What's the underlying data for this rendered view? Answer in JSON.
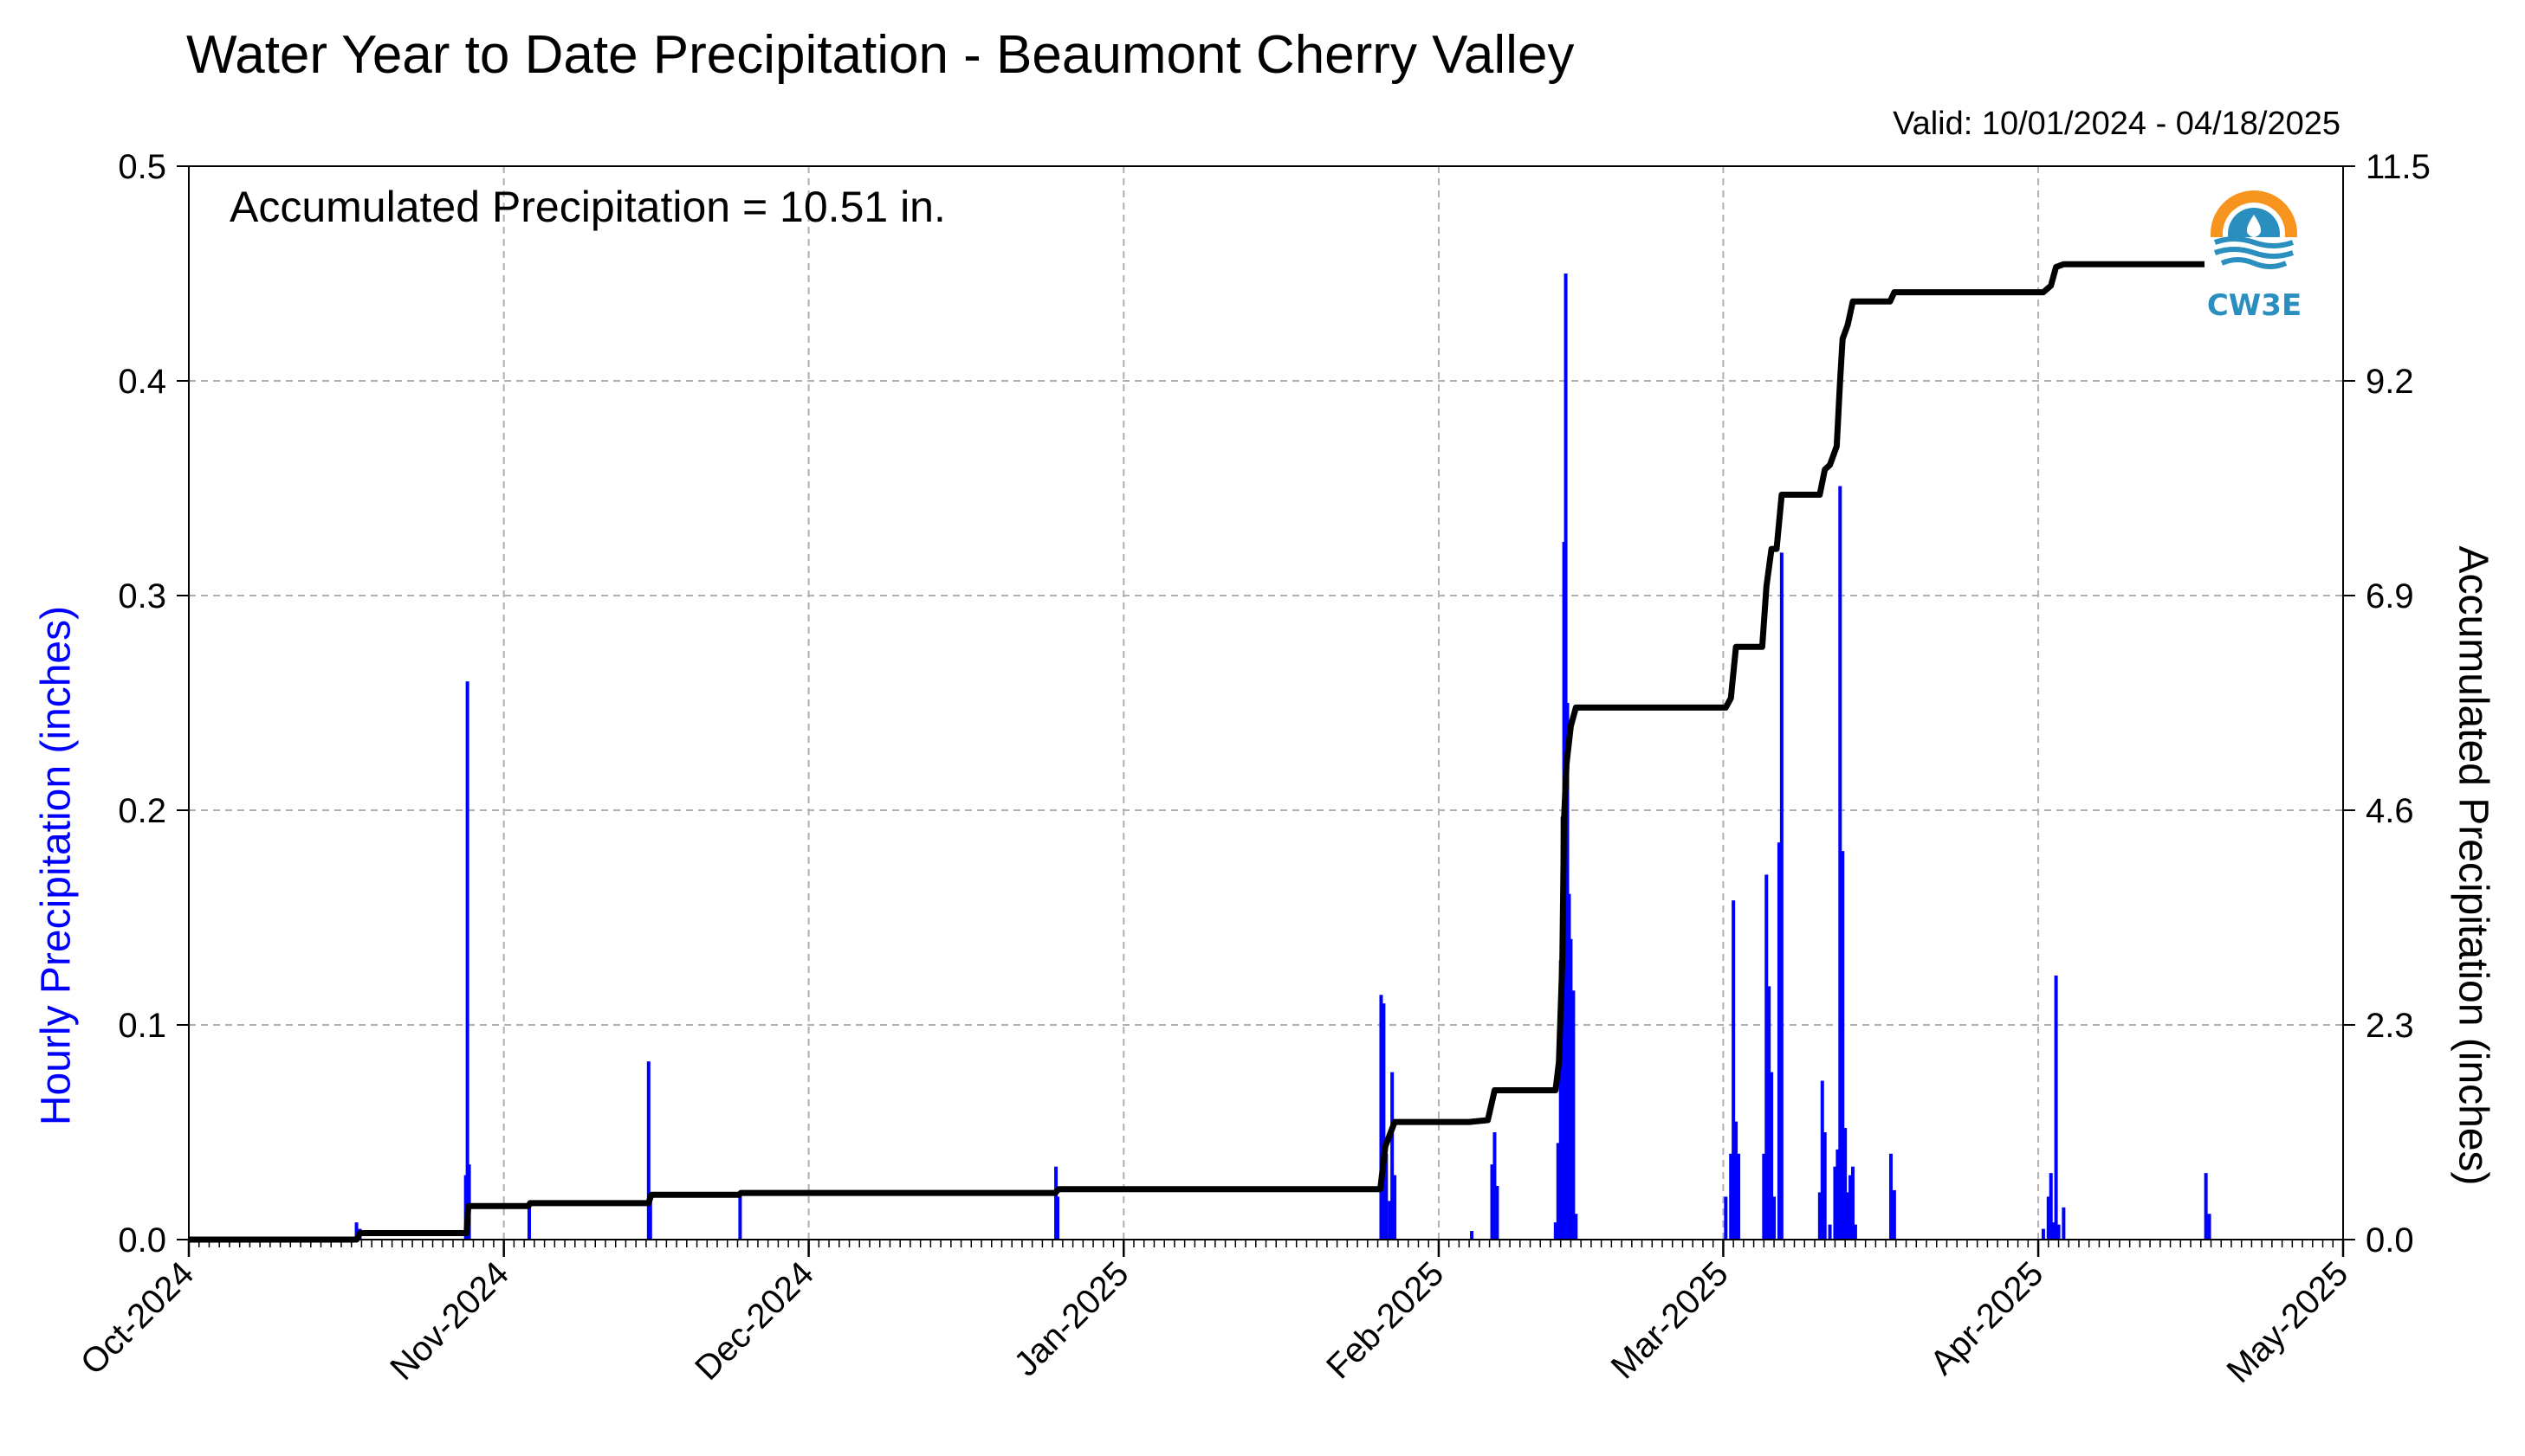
{
  "title": "Water Year to Date Precipitation - Beaumont Cherry Valley",
  "valid_text": "Valid: 10/01/2024 - 04/18/2025",
  "accumulated_text": "Accumulated Precipitation = 10.51 in.",
  "logo": {
    "text": "CW3E",
    "icon": "cw3e-logo-icon"
  },
  "chart_data": {
    "type": "bar",
    "title": "Water Year to Date Precipitation - Beaumont Cherry Valley",
    "xlim": [
      "2024-10-01",
      "2025-05-01"
    ],
    "x_ticks": [
      {
        "date": "2024-10-01",
        "label": "Oct-2024"
      },
      {
        "date": "2024-11-01",
        "label": "Nov-2024"
      },
      {
        "date": "2024-12-01",
        "label": "Dec-2024"
      },
      {
        "date": "2025-01-01",
        "label": "Jan-2025"
      },
      {
        "date": "2025-02-01",
        "label": "Feb-2025"
      },
      {
        "date": "2025-03-01",
        "label": "Mar-2025"
      },
      {
        "date": "2025-04-01",
        "label": "Apr-2025"
      },
      {
        "date": "2025-05-01",
        "label": "May-2025"
      }
    ],
    "y_left": {
      "label": "Hourly Precipitation (inches)",
      "lim": [
        0,
        0.5
      ],
      "ticks": [
        "0.0",
        "0.1",
        "0.2",
        "0.3",
        "0.4",
        "0.5"
      ],
      "color": "#0000ff"
    },
    "y_right": {
      "label": "Accumulated Precipitation (inches)",
      "lim": [
        0,
        11.5
      ],
      "ticks": [
        "0.0",
        "2.3",
        "4.6",
        "6.9",
        "9.2",
        "11.5"
      ]
    },
    "grid": true,
    "series": [
      {
        "type": "bar",
        "axis": "left",
        "color": "#0000ff",
        "points": [
          [
            "2024-10-17T12:00",
            0.008
          ],
          [
            "2024-10-17T20:00",
            0.005
          ],
          [
            "2024-10-28T06:00",
            0.03
          ],
          [
            "2024-10-28T10:00",
            0.26
          ],
          [
            "2024-10-28T14:00",
            0.035
          ],
          [
            "2024-11-03T12:00",
            0.015
          ],
          [
            "2024-11-15T06:00",
            0.083
          ],
          [
            "2024-11-15T10:00",
            0.02
          ],
          [
            "2024-11-24T06:00",
            0.02
          ],
          [
            "2024-12-25T08:00",
            0.034
          ],
          [
            "2024-12-25T12:00",
            0.02
          ],
          [
            "2025-01-26T08:00",
            0.114
          ],
          [
            "2025-01-26T14:00",
            0.11
          ],
          [
            "2025-01-26T20:00",
            0.04
          ],
          [
            "2025-01-27T04:00",
            0.018
          ],
          [
            "2025-01-27T10:00",
            0.078
          ],
          [
            "2025-01-27T16:00",
            0.03
          ],
          [
            "2025-02-04T06:00",
            0.004
          ],
          [
            "2025-02-06T06:00",
            0.035
          ],
          [
            "2025-02-06T12:00",
            0.05
          ],
          [
            "2025-02-06T18:00",
            0.025
          ],
          [
            "2025-02-12T12:00",
            0.008
          ],
          [
            "2025-02-12T18:00",
            0.045
          ],
          [
            "2025-02-13T00:00",
            0.13
          ],
          [
            "2025-02-13T04:00",
            0.197
          ],
          [
            "2025-02-13T08:00",
            0.325
          ],
          [
            "2025-02-13T12:00",
            0.45
          ],
          [
            "2025-02-13T16:00",
            0.25
          ],
          [
            "2025-02-13T20:00",
            0.161
          ],
          [
            "2025-02-14T00:00",
            0.14
          ],
          [
            "2025-02-14T06:00",
            0.116
          ],
          [
            "2025-02-14T12:00",
            0.012
          ],
          [
            "2025-03-01T06:00",
            0.02
          ],
          [
            "2025-03-01T18:00",
            0.04
          ],
          [
            "2025-03-02T00:00",
            0.158
          ],
          [
            "2025-03-02T06:00",
            0.055
          ],
          [
            "2025-03-02T12:00",
            0.04
          ],
          [
            "2025-03-05T00:00",
            0.04
          ],
          [
            "2025-03-05T06:00",
            0.17
          ],
          [
            "2025-03-05T12:00",
            0.118
          ],
          [
            "2025-03-05T18:00",
            0.078
          ],
          [
            "2025-03-06T00:00",
            0.02
          ],
          [
            "2025-03-06T12:00",
            0.185
          ],
          [
            "2025-03-06T18:00",
            0.32
          ],
          [
            "2025-03-10T12:00",
            0.022
          ],
          [
            "2025-03-10T18:00",
            0.074
          ],
          [
            "2025-03-11T00:00",
            0.05
          ],
          [
            "2025-03-11T12:00",
            0.007
          ],
          [
            "2025-03-12T00:00",
            0.034
          ],
          [
            "2025-03-12T06:00",
            0.042
          ],
          [
            "2025-03-12T12:00",
            0.351
          ],
          [
            "2025-03-12T18:00",
            0.181
          ],
          [
            "2025-03-13T00:00",
            0.052
          ],
          [
            "2025-03-13T06:00",
            0.022
          ],
          [
            "2025-03-13T12:00",
            0.03
          ],
          [
            "2025-03-13T18:00",
            0.034
          ],
          [
            "2025-03-14T00:00",
            0.007
          ],
          [
            "2025-03-17T12:00",
            0.04
          ],
          [
            "2025-03-17T20:00",
            0.023
          ],
          [
            "2025-04-01T12:00",
            0.005
          ],
          [
            "2025-04-02T00:00",
            0.02
          ],
          [
            "2025-04-02T06:00",
            0.031
          ],
          [
            "2025-04-02T12:00",
            0.008
          ],
          [
            "2025-04-02T18:00",
            0.123
          ],
          [
            "2025-04-03T00:00",
            0.007
          ],
          [
            "2025-04-03T12:00",
            0.015
          ],
          [
            "2025-04-17T12:00",
            0.031
          ],
          [
            "2025-04-17T20:00",
            0.012
          ]
        ]
      },
      {
        "type": "line",
        "axis": "right",
        "color": "#000000",
        "points": [
          [
            "2024-10-01T00:00",
            0.0
          ],
          [
            "2024-10-17T12:00",
            0.0
          ],
          [
            "2024-10-17T20:00",
            0.07
          ],
          [
            "2024-10-28T08:00",
            0.07
          ],
          [
            "2024-10-28T12:00",
            0.36
          ],
          [
            "2024-11-03T10:00",
            0.36
          ],
          [
            "2024-11-03T14:00",
            0.39
          ],
          [
            "2024-11-15T06:00",
            0.39
          ],
          [
            "2024-11-15T12:00",
            0.48
          ],
          [
            "2024-11-24T04:00",
            0.48
          ],
          [
            "2024-11-24T08:00",
            0.5
          ],
          [
            "2024-12-25T06:00",
            0.5
          ],
          [
            "2024-12-25T14:00",
            0.54
          ],
          [
            "2025-01-26T06:00",
            0.54
          ],
          [
            "2025-01-26T18:00",
            1.0
          ],
          [
            "2025-01-27T16:00",
            1.26
          ],
          [
            "2025-02-04T00:00",
            1.26
          ],
          [
            "2025-02-05T20:00",
            1.28
          ],
          [
            "2025-02-06T12:00",
            1.6
          ],
          [
            "2025-02-12T12:00",
            1.6
          ],
          [
            "2025-02-12T20:00",
            1.9
          ],
          [
            "2025-02-13T04:00",
            3.0
          ],
          [
            "2025-02-13T08:00",
            4.5
          ],
          [
            "2025-02-13T14:00",
            5.1
          ],
          [
            "2025-02-14T00:00",
            5.5
          ],
          [
            "2025-02-14T12:00",
            5.7
          ],
          [
            "2025-03-01T06:00",
            5.7
          ],
          [
            "2025-03-01T18:00",
            5.8
          ],
          [
            "2025-03-02T06:00",
            6.35
          ],
          [
            "2025-03-04T20:00",
            6.35
          ],
          [
            "2025-03-05T06:00",
            7.0
          ],
          [
            "2025-03-05T18:00",
            7.4
          ],
          [
            "2025-03-06T06:00",
            7.4
          ],
          [
            "2025-03-06T18:00",
            7.98
          ],
          [
            "2025-03-10T12:00",
            7.98
          ],
          [
            "2025-03-11T00:00",
            8.25
          ],
          [
            "2025-03-11T12:00",
            8.3
          ],
          [
            "2025-03-12T04:00",
            8.5
          ],
          [
            "2025-03-12T12:00",
            9.2
          ],
          [
            "2025-03-12T18:00",
            9.65
          ],
          [
            "2025-03-13T06:00",
            9.8
          ],
          [
            "2025-03-13T18:00",
            10.05
          ],
          [
            "2025-03-17T10:00",
            10.05
          ],
          [
            "2025-03-17T20:00",
            10.15
          ],
          [
            "2025-04-01T12:00",
            10.15
          ],
          [
            "2025-04-02T06:00",
            10.22
          ],
          [
            "2025-04-02T18:00",
            10.42
          ],
          [
            "2025-04-03T12:00",
            10.45
          ],
          [
            "2025-04-17T12:00",
            10.45
          ],
          [
            "2025-04-18T00:00",
            10.51
          ]
        ]
      }
    ]
  }
}
